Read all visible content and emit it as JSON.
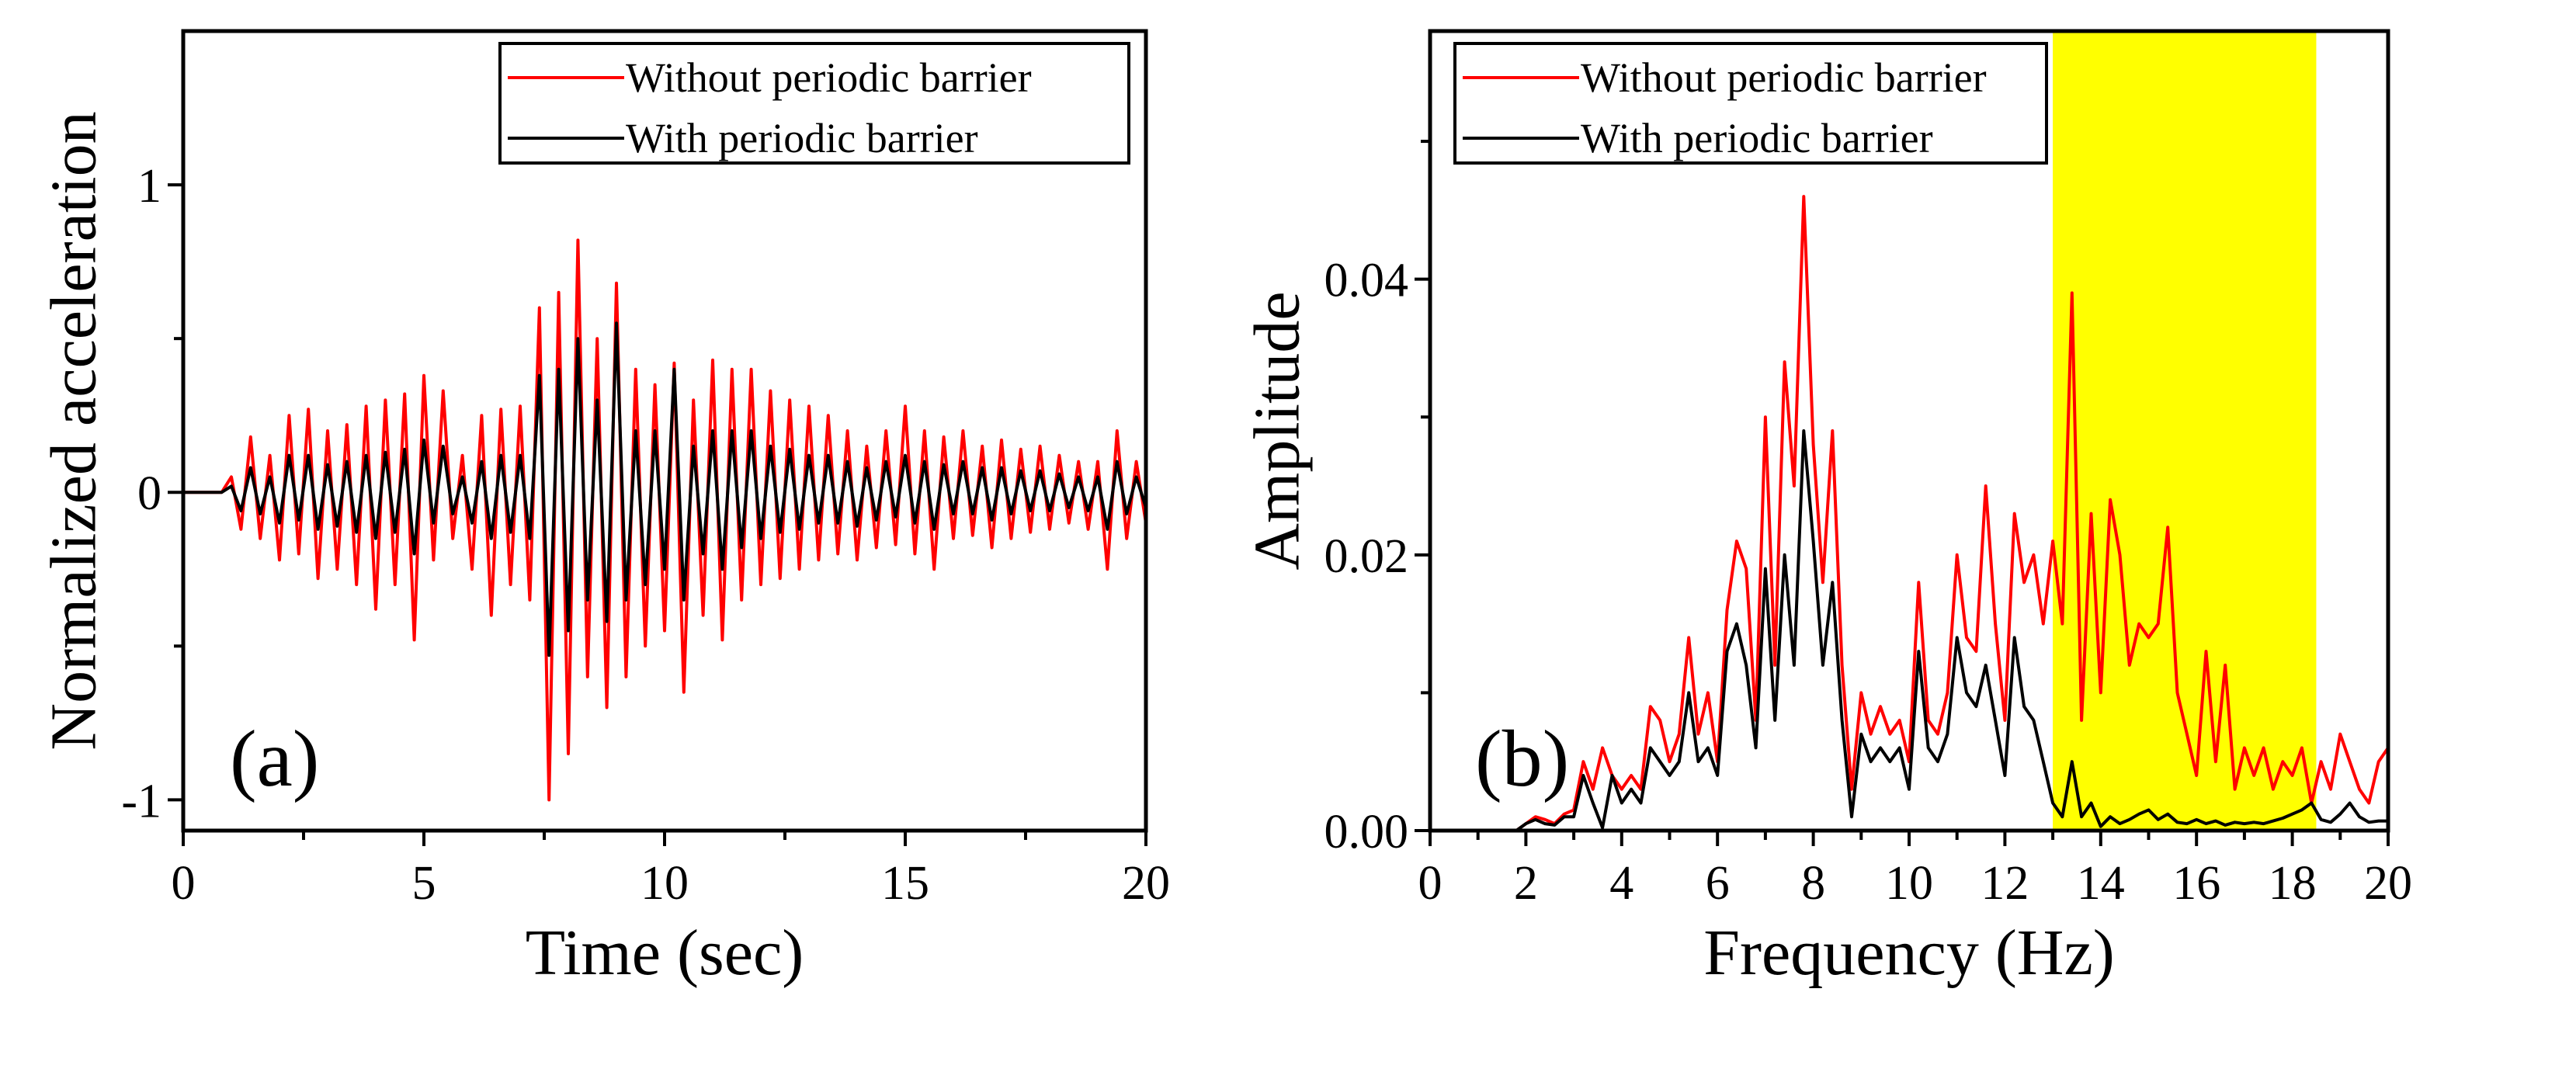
{
  "colors": {
    "without": "#ff0000",
    "with": "#000000",
    "band": "#ffff00"
  },
  "chart_data": [
    {
      "type": "line",
      "panel_label": "(a)",
      "xlabel": "Time (sec)",
      "ylabel": "Normalized acceleration",
      "xlim": [
        0,
        20
      ],
      "ylim": [
        -1.1,
        1.5
      ],
      "xticks": [
        0,
        5,
        10,
        15,
        20
      ],
      "xtick_labels": [
        "0",
        "5",
        "10",
        "15",
        "20"
      ],
      "xminor": [
        2.5,
        7.5,
        12.5,
        17.5
      ],
      "yticks": [
        -1,
        0,
        1
      ],
      "ytick_labels": [
        "-1",
        "0",
        "1"
      ],
      "yminor": [
        -0.5,
        0.5
      ],
      "legend": {
        "placement": "top-right",
        "entries": [
          "Without periodic barrier",
          "With periodic barrier"
        ]
      },
      "x": {
        "start": 0,
        "step": 0.2
      },
      "series": [
        {
          "name": "Without periodic barrier",
          "color": "#ff0000",
          "values": [
            0,
            0,
            0,
            0,
            0,
            0.05,
            -0.12,
            0.18,
            -0.15,
            0.12,
            -0.22,
            0.25,
            -0.2,
            0.27,
            -0.28,
            0.2,
            -0.25,
            0.22,
            -0.3,
            0.28,
            -0.38,
            0.3,
            -0.3,
            0.32,
            -0.48,
            0.38,
            -0.22,
            0.33,
            -0.15,
            0.12,
            -0.25,
            0.25,
            -0.4,
            0.27,
            -0.3,
            0.28,
            -0.35,
            0.6,
            -1.0,
            0.65,
            -0.85,
            0.82,
            -0.6,
            0.5,
            -0.7,
            0.68,
            -0.6,
            0.4,
            -0.5,
            0.35,
            -0.45,
            0.42,
            -0.65,
            0.3,
            -0.4,
            0.43,
            -0.48,
            0.4,
            -0.35,
            0.4,
            -0.3,
            0.33,
            -0.28,
            0.3,
            -0.25,
            0.28,
            -0.22,
            0.25,
            -0.2,
            0.2,
            -0.22,
            0.15,
            -0.18,
            0.2,
            -0.17,
            0.28,
            -0.2,
            0.2,
            -0.25,
            0.18,
            -0.15,
            0.2,
            -0.14,
            0.15,
            -0.18,
            0.17,
            -0.15,
            0.14,
            -0.13,
            0.15,
            -0.12,
            0.12,
            -0.1,
            0.1,
            -0.12,
            0.1,
            -0.25,
            0.2,
            -0.15,
            0.1,
            -0.1
          ]
        },
        {
          "name": "With periodic barrier",
          "color": "#000000",
          "values": [
            0,
            0,
            0,
            0,
            0,
            0.02,
            -0.06,
            0.08,
            -0.07,
            0.05,
            -0.1,
            0.12,
            -0.09,
            0.12,
            -0.12,
            0.09,
            -0.11,
            0.1,
            -0.13,
            0.12,
            -0.15,
            0.13,
            -0.13,
            0.14,
            -0.2,
            0.17,
            -0.1,
            0.15,
            -0.07,
            0.05,
            -0.1,
            0.1,
            -0.15,
            0.12,
            -0.13,
            0.12,
            -0.15,
            0.38,
            -0.53,
            0.4,
            -0.45,
            0.5,
            -0.35,
            0.3,
            -0.42,
            0.55,
            -0.35,
            0.2,
            -0.3,
            0.2,
            -0.25,
            0.4,
            -0.35,
            0.15,
            -0.2,
            0.2,
            -0.25,
            0.2,
            -0.18,
            0.2,
            -0.15,
            0.15,
            -0.13,
            0.14,
            -0.12,
            0.12,
            -0.1,
            0.12,
            -0.1,
            0.1,
            -0.11,
            0.08,
            -0.09,
            0.1,
            -0.08,
            0.12,
            -0.1,
            0.1,
            -0.12,
            0.09,
            -0.07,
            0.1,
            -0.07,
            0.08,
            -0.09,
            0.08,
            -0.07,
            0.07,
            -0.06,
            0.07,
            -0.06,
            0.06,
            -0.05,
            0.05,
            -0.06,
            0.05,
            -0.12,
            0.1,
            -0.07,
            0.05,
            -0.05
          ]
        }
      ]
    },
    {
      "type": "line",
      "panel_label": "(b)",
      "xlabel": "Frequency (Hz)",
      "ylabel": "Amplitude",
      "xlim": [
        0,
        20
      ],
      "ylim": [
        0,
        0.058
      ],
      "xticks": [
        0,
        2,
        4,
        6,
        8,
        10,
        12,
        14,
        16,
        18,
        20
      ],
      "xtick_labels": [
        "0",
        "2",
        "4",
        "6",
        "8",
        "10",
        "12",
        "14",
        "16",
        "18",
        "20"
      ],
      "xminor": [
        1,
        3,
        5,
        7,
        9,
        11,
        13,
        15,
        17,
        19
      ],
      "yticks": [
        0,
        0.02,
        0.04
      ],
      "ytick_labels": [
        "0.00",
        "0.02",
        "0.04"
      ],
      "yminor": [
        0.01,
        0.03,
        0.05
      ],
      "highlight_band": {
        "x_range": [
          13,
          18.5
        ],
        "color": "#ffff00"
      },
      "legend": {
        "placement": "top-left",
        "entries": [
          "Without periodic barrier",
          "With periodic barrier"
        ]
      },
      "x": {
        "start": 0,
        "step": 0.2
      },
      "series": [
        {
          "name": "Without periodic barrier",
          "color": "#ff0000",
          "values": [
            0,
            0,
            0,
            0,
            0,
            0,
            0,
            0,
            0,
            0,
            0.0005,
            0.001,
            0.0008,
            0.0005,
            0.0012,
            0.0015,
            0.005,
            0.003,
            0.006,
            0.004,
            0.003,
            0.004,
            0.003,
            0.009,
            0.008,
            0.005,
            0.007,
            0.014,
            0.007,
            0.01,
            0.005,
            0.016,
            0.021,
            0.019,
            0.008,
            0.03,
            0.012,
            0.034,
            0.025,
            0.046,
            0.028,
            0.018,
            0.029,
            0.012,
            0.003,
            0.01,
            0.007,
            0.009,
            0.007,
            0.008,
            0.005,
            0.018,
            0.008,
            0.007,
            0.01,
            0.02,
            0.014,
            0.013,
            0.025,
            0.015,
            0.008,
            0.023,
            0.018,
            0.02,
            0.015,
            0.021,
            0.015,
            0.039,
            0.008,
            0.023,
            0.01,
            0.024,
            0.02,
            0.012,
            0.015,
            0.014,
            0.015,
            0.022,
            0.01,
            0.007,
            0.004,
            0.013,
            0.005,
            0.012,
            0.003,
            0.006,
            0.004,
            0.006,
            0.003,
            0.005,
            0.004,
            0.006,
            0.002,
            0.005,
            0.003,
            0.007,
            0.005,
            0.003,
            0.002,
            0.005,
            0.006
          ]
        },
        {
          "name": "With periodic barrier",
          "color": "#000000",
          "values": [
            0,
            0,
            0,
            0,
            0,
            0,
            0,
            0,
            0,
            0,
            0.0005,
            0.0008,
            0.0005,
            0.0004,
            0.001,
            0.001,
            0.004,
            0.002,
            0.0002,
            0.004,
            0.002,
            0.003,
            0.002,
            0.006,
            0.005,
            0.004,
            0.005,
            0.01,
            0.005,
            0.006,
            0.004,
            0.013,
            0.015,
            0.012,
            0.006,
            0.019,
            0.008,
            0.02,
            0.012,
            0.029,
            0.021,
            0.012,
            0.018,
            0.008,
            0.001,
            0.007,
            0.005,
            0.006,
            0.005,
            0.006,
            0.003,
            0.013,
            0.006,
            0.005,
            0.007,
            0.014,
            0.01,
            0.009,
            0.012,
            0.008,
            0.004,
            0.014,
            0.009,
            0.008,
            0.005,
            0.002,
            0.001,
            0.005,
            0.001,
            0.002,
            0.0003,
            0.001,
            0.0005,
            0.0008,
            0.0012,
            0.0015,
            0.0008,
            0.0012,
            0.0006,
            0.0005,
            0.0008,
            0.0005,
            0.0007,
            0.0004,
            0.0006,
            0.0005,
            0.0006,
            0.0005,
            0.0007,
            0.0009,
            0.0012,
            0.0015,
            0.002,
            0.0008,
            0.0006,
            0.0012,
            0.002,
            0.001,
            0.0006,
            0.0007,
            0.0007
          ]
        }
      ]
    }
  ]
}
